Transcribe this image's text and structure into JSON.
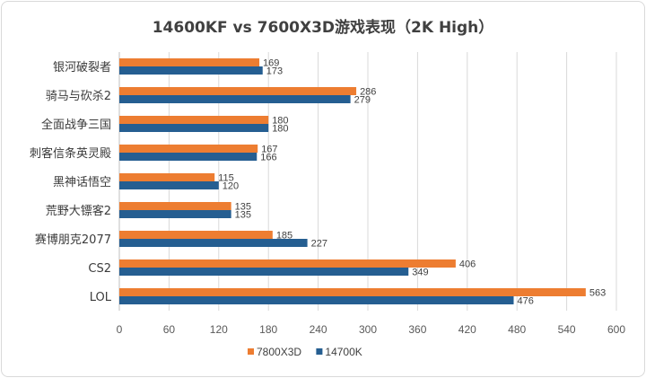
{
  "chart_data": {
    "type": "bar",
    "orientation": "horizontal",
    "title": "14600KF vs 7600X3D游戏表现（2K High）",
    "categories": [
      "银河破裂者",
      "骑马与砍杀2",
      "全面战争三国",
      "刺客信条英灵殿",
      "黑神话悟空",
      "荒野大镖客2",
      "赛博朋克2077",
      "CS2",
      "LOL"
    ],
    "series": [
      {
        "name": "7800X3D",
        "color": "#ED7D31",
        "values": [
          169,
          286,
          180,
          167,
          115,
          135,
          185,
          406,
          563
        ]
      },
      {
        "name": "14700K",
        "color": "#255E91",
        "values": [
          173,
          279,
          180,
          166,
          120,
          135,
          227,
          349,
          476
        ]
      }
    ],
    "xlim": [
      0,
      600
    ],
    "xticks": [
      "0",
      "60",
      "120",
      "180",
      "240",
      "300",
      "360",
      "420",
      "480",
      "540",
      "600"
    ],
    "grid": true,
    "legend_position": "bottom",
    "data_labels": true
  }
}
